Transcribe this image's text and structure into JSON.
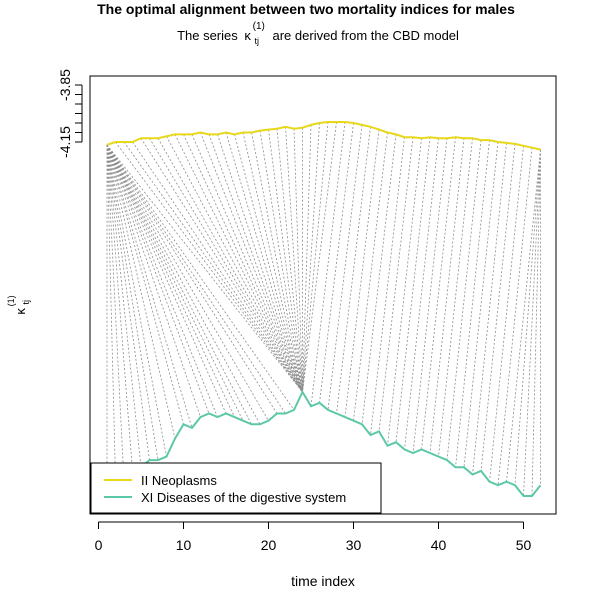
{
  "chart_data": {
    "type": "line",
    "title": "The optimal alignment between two mortality indices for males",
    "subtitle": {
      "prefix": "The series",
      "symbol": "κ",
      "subscript": "tj",
      "superscript": "(1)",
      "suffix": "are derived from the CBD model"
    },
    "xlabel": "time index",
    "ylabel": {
      "symbol": "κ",
      "subscript": "tj",
      "superscript": "(1)"
    },
    "xlim": [
      1,
      52
    ],
    "x_ticks": [
      0,
      10,
      20,
      30,
      40,
      50
    ],
    "y_ticks": [
      -4.15,
      -3.85
    ],
    "y_tick_labels": [
      "-4.15",
      "-3.85"
    ],
    "ylim": [
      -4.2,
      -3.79
    ],
    "legend": {
      "position": "bottom-left"
    },
    "alignment_lines": {
      "style": "dashed",
      "color": "#8c8c8c"
    },
    "series": [
      {
        "name": "II Neoplasms",
        "color": "#e8d81a",
        "x": [
          1,
          2,
          3,
          4,
          5,
          6,
          7,
          8,
          9,
          10,
          11,
          12,
          13,
          14,
          15,
          16,
          17,
          18,
          19,
          20,
          21,
          22,
          23,
          24,
          25,
          26,
          27,
          28,
          29,
          30,
          31,
          32,
          33,
          34,
          35,
          36,
          37,
          38,
          39,
          40,
          41,
          42,
          43,
          44,
          45,
          46,
          47,
          48,
          49,
          50,
          51,
          52
        ],
        "values": [
          -4.165,
          -4.15,
          -4.15,
          -4.15,
          -4.13,
          -4.13,
          -4.13,
          -4.12,
          -4.11,
          -4.11,
          -4.11,
          -4.1,
          -4.11,
          -4.11,
          -4.1,
          -4.11,
          -4.1,
          -4.1,
          -4.09,
          -4.085,
          -4.08,
          -4.07,
          -4.08,
          -4.075,
          -4.06,
          -4.05,
          -4.045,
          -4.045,
          -4.045,
          -4.05,
          -4.06,
          -4.07,
          -4.085,
          -4.1,
          -4.11,
          -4.125,
          -4.125,
          -4.13,
          -4.125,
          -4.13,
          -4.13,
          -4.125,
          -4.13,
          -4.13,
          -4.14,
          -4.14,
          -4.15,
          -4.155,
          -4.16,
          -4.17,
          -4.18,
          -4.19
        ]
      },
      {
        "name": "XI Diseases of the digestive system",
        "color": "#5cc8a8",
        "x": [
          1,
          2,
          3,
          4,
          5,
          6,
          7,
          8,
          9,
          10,
          11,
          12,
          13,
          14,
          15,
          16,
          17,
          18,
          19,
          20,
          21,
          22,
          23,
          24,
          25,
          26,
          27,
          28,
          29,
          30,
          31,
          32,
          33,
          34,
          35,
          36,
          37,
          38,
          39,
          40,
          41,
          42,
          43,
          44,
          45,
          46,
          47,
          48,
          49,
          50,
          51,
          52
        ],
        "values": [
          -4.61,
          -4.605,
          -4.61,
          -4.595,
          -4.59,
          -4.58,
          -4.58,
          -4.575,
          -4.55,
          -4.53,
          -4.535,
          -4.52,
          -4.515,
          -4.52,
          -4.515,
          -4.52,
          -4.525,
          -4.53,
          -4.53,
          -4.525,
          -4.515,
          -4.515,
          -4.51,
          -4.485,
          -4.505,
          -4.5,
          -4.51,
          -4.515,
          -4.52,
          -4.525,
          -4.53,
          -4.545,
          -4.54,
          -4.56,
          -4.555,
          -4.565,
          -4.57,
          -4.565,
          -4.57,
          -4.575,
          -4.58,
          -4.59,
          -4.59,
          -4.6,
          -4.595,
          -4.61,
          -4.615,
          -4.61,
          -4.615,
          -4.63,
          -4.63,
          -4.615
        ]
      }
    ],
    "alignment_pairs": [
      [
        1,
        1
      ],
      [
        1,
        2
      ],
      [
        1,
        3
      ],
      [
        1,
        4
      ],
      [
        1,
        5
      ],
      [
        1,
        6
      ],
      [
        1,
        7
      ],
      [
        1,
        8
      ],
      [
        1,
        9
      ],
      [
        1,
        10
      ],
      [
        1,
        11
      ],
      [
        1,
        12
      ],
      [
        1,
        13
      ],
      [
        1,
        14
      ],
      [
        1,
        15
      ],
      [
        1,
        16
      ],
      [
        1,
        17
      ],
      [
        1,
        18
      ],
      [
        1,
        19
      ],
      [
        1,
        20
      ],
      [
        1,
        21
      ],
      [
        1,
        22
      ],
      [
        1,
        23
      ],
      [
        1,
        24
      ],
      [
        2,
        24
      ],
      [
        3,
        24
      ],
      [
        4,
        24
      ],
      [
        5,
        24
      ],
      [
        6,
        24
      ],
      [
        7,
        24
      ],
      [
        8,
        24
      ],
      [
        9,
        24
      ],
      [
        10,
        24
      ],
      [
        11,
        24
      ],
      [
        12,
        24
      ],
      [
        13,
        24
      ],
      [
        14,
        24
      ],
      [
        15,
        24
      ],
      [
        16,
        24
      ],
      [
        17,
        24
      ],
      [
        18,
        24
      ],
      [
        19,
        24
      ],
      [
        20,
        24
      ],
      [
        21,
        24
      ],
      [
        22,
        24
      ],
      [
        23,
        24
      ],
      [
        24,
        24
      ],
      [
        25,
        24
      ],
      [
        26,
        24
      ],
      [
        27,
        24
      ],
      [
        28,
        24
      ],
      [
        29,
        25
      ],
      [
        30,
        26
      ],
      [
        31,
        27
      ],
      [
        32,
        28
      ],
      [
        33,
        29
      ],
      [
        34,
        30
      ],
      [
        35,
        31
      ],
      [
        36,
        32
      ],
      [
        37,
        33
      ],
      [
        38,
        34
      ],
      [
        39,
        35
      ],
      [
        40,
        36
      ],
      [
        41,
        37
      ],
      [
        42,
        38
      ],
      [
        43,
        39
      ],
      [
        44,
        40
      ],
      [
        45,
        41
      ],
      [
        46,
        42
      ],
      [
        47,
        43
      ],
      [
        48,
        44
      ],
      [
        49,
        45
      ],
      [
        50,
        46
      ],
      [
        51,
        47
      ],
      [
        52,
        48
      ],
      [
        52,
        49
      ],
      [
        52,
        50
      ],
      [
        52,
        51
      ],
      [
        52,
        52
      ]
    ]
  }
}
